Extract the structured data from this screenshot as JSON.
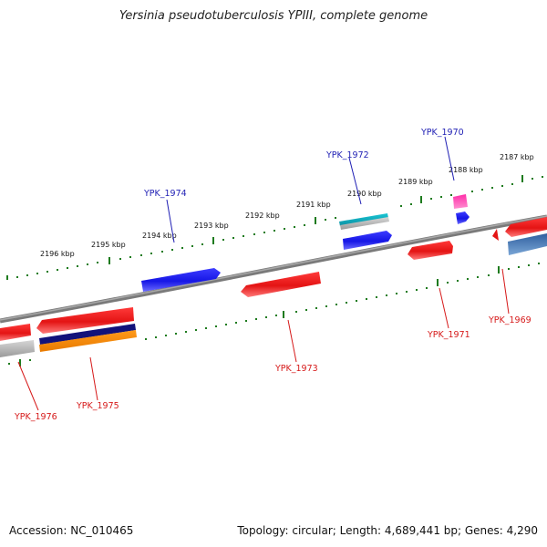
{
  "title": "Yersinia pseudotuberculosis YPIII, complete genome",
  "footer": {
    "accession": "Accession: NC_010465",
    "summary": "Topology: circular; Length: 4,689,441 bp; Genes: 4,290"
  },
  "kbp_ticks": [
    "2196 kbp",
    "2195 kbp",
    "2194 kbp",
    "2193 kbp",
    "2192 kbp",
    "2191 kbp",
    "2190 kbp",
    "2189 kbp",
    "2188 kbp",
    "2187 kbp"
  ],
  "genes_upper": [
    "YPK_1974",
    "YPK_1972",
    "YPK_1970"
  ],
  "genes_lower": [
    "YPK_1976",
    "YPK_1975",
    "YPK_1973",
    "YPK_1971",
    "YPK_1969"
  ],
  "colors": {
    "forward_gene": "#1a1aee",
    "reverse_gene": "#ee1a1a",
    "backbone": "#7a7a7a",
    "tick": "#1e7b1e",
    "label_blue": "#1f1fb4",
    "label_red": "#d61a1a"
  }
}
